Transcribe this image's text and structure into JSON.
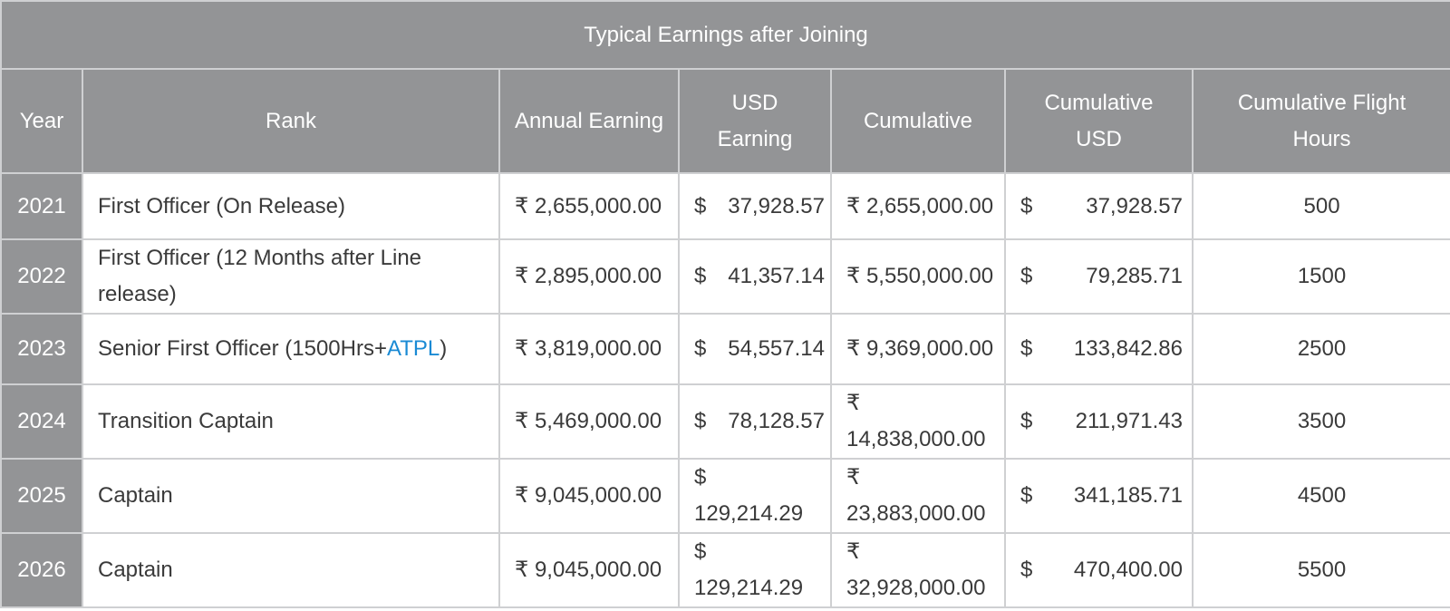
{
  "table": {
    "caption": "Typical Earnings after Joining",
    "headers": {
      "year": "Year",
      "rank": "Rank",
      "annual": "Annual Earning",
      "usd": "USD Earning",
      "cumulative": "Cumulative",
      "cum_usd": "Cumulative USD",
      "hours": "Cumulative Flight Hours"
    },
    "rows": [
      {
        "year": "2021",
        "rank": "First Officer  (On Release)",
        "annual": "₹ 2,655,000.00",
        "usd_sym": "$",
        "usd_val": "37,928.57",
        "cumulative": "₹ 2,655,000.00",
        "cum_usd_sym": "$",
        "cum_usd_val": "37,928.57",
        "hours": "500"
      },
      {
        "year": "2022",
        "rank": "First Officer  (12 Months after Line release)",
        "annual": "₹ 2,895,000.00",
        "usd_sym": "$",
        "usd_val": "41,357.14",
        "cumulative": "₹ 5,550,000.00",
        "cum_usd_sym": "$",
        "cum_usd_val": "79,285.71",
        "hours": "1500"
      },
      {
        "year": "2023",
        "rank_prefix": "Senior First Officer (1500Hrs+",
        "rank_link": "ATPL",
        "rank_suffix": ")",
        "annual": "₹ 3,819,000.00",
        "usd_sym": "$",
        "usd_val": "54,557.14",
        "cumulative": "₹ 9,369,000.00",
        "cum_usd_sym": "$",
        "cum_usd_val": "133,842.86",
        "hours": "2500"
      },
      {
        "year": "2024",
        "rank": "Transition Captain",
        "annual": "₹ 5,469,000.00",
        "usd_sym": "$",
        "usd_val": "78,128.57",
        "cumulative_sym": "₹",
        "cumulative_val": "14,838,000.00",
        "cum_usd_sym": "$",
        "cum_usd_val": "211,971.43",
        "hours": "3500"
      },
      {
        "year": "2025",
        "rank": "Captain",
        "annual": "₹ 9,045,000.00",
        "usd_sym": "$",
        "usd_val": "129,214.29",
        "cumulative_sym": "₹",
        "cumulative_val": "23,883,000.00",
        "cum_usd_sym": "$",
        "cum_usd_val": "341,185.71",
        "hours": "4500"
      },
      {
        "year": "2026",
        "rank": "Captain",
        "annual": "₹ 9,045,000.00",
        "usd_sym": "$",
        "usd_val": "129,214.29",
        "cumulative_sym": "₹",
        "cumulative_val": "32,928,000.00",
        "cum_usd_sym": "$",
        "cum_usd_val": "470,400.00",
        "hours": "5500"
      }
    ]
  },
  "colors": {
    "header_bg": "#939496",
    "link": "#1a8ad4",
    "border": "#cfd0d2"
  }
}
